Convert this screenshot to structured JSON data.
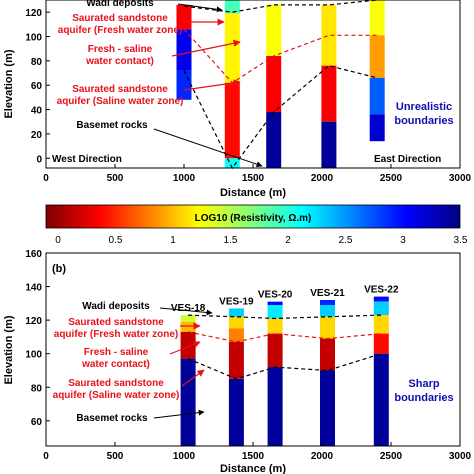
{
  "colorbar": {
    "label": "LOG10 (Resistivity, Ω.m)",
    "ticks": [
      "0",
      "0.5",
      "1",
      "1.5",
      "2",
      "2.5",
      "3",
      "3.5"
    ],
    "range": [
      0,
      3.6
    ]
  },
  "chart_data": [
    {
      "type": "bar",
      "panel_label": "",
      "xlabel": "Distance (m)",
      "ylabel": "Elevation (m)",
      "xlim": [
        0,
        3000
      ],
      "ylim": [
        -8,
        130
      ],
      "xticks": [
        "0",
        "500",
        "1000",
        "1500",
        "2000",
        "2500",
        "3000"
      ],
      "yticks": [
        "0",
        "20",
        "40",
        "60",
        "80",
        "100",
        "120"
      ],
      "columns": [
        {
          "x": 1000,
          "layers": [
            {
              "top": 126,
              "bottom": 106,
              "log_res": 0.45
            },
            {
              "top": 106,
              "bottom": 72,
              "log_res": 3.2
            },
            {
              "top": 72,
              "bottom": 48,
              "log_res": 3.0
            }
          ]
        },
        {
          "x": 1350,
          "layers": [
            {
              "top": 130,
              "bottom": 119,
              "log_res": 2.0
            },
            {
              "top": 119,
              "bottom": 62,
              "log_res": 1.3
            },
            {
              "top": 62,
              "bottom": 0,
              "log_res": 0.5
            },
            {
              "top": 0,
              "bottom": -8,
              "log_res": 2.2
            }
          ]
        },
        {
          "x": 1650,
          "layers": [
            {
              "top": 126,
              "bottom": 84,
              "log_res": 1.35
            },
            {
              "top": 84,
              "bottom": 38,
              "log_res": 0.45
            },
            {
              "top": 38,
              "bottom": -8,
              "log_res": 3.5
            }
          ]
        },
        {
          "x": 2050,
          "layers": [
            {
              "top": 126,
              "bottom": 76,
              "log_res": 1.25
            },
            {
              "top": 76,
              "bottom": 30,
              "log_res": 0.45
            },
            {
              "top": 30,
              "bottom": -8,
              "log_res": 3.5
            }
          ]
        },
        {
          "x": 2400,
          "layers": [
            {
              "top": 130,
              "bottom": 101,
              "log_res": 1.35
            },
            {
              "top": 101,
              "bottom": 66,
              "log_res": 1.0
            },
            {
              "top": 66,
              "bottom": 36,
              "log_res": 2.8
            },
            {
              "top": 36,
              "bottom": 14,
              "log_res": 3.3
            }
          ]
        }
      ],
      "boundaries": [
        {
          "color": "black",
          "points": [
            [
              1000,
              125
            ],
            [
              1350,
              120
            ],
            [
              1650,
              126
            ],
            [
              2050,
              126
            ],
            [
              2400,
              130
            ]
          ]
        },
        {
          "color": "red",
          "points": [
            [
              1000,
              106
            ],
            [
              1350,
              62
            ],
            [
              1650,
              84
            ],
            [
              2050,
              101
            ],
            [
              2400,
              101
            ]
          ]
        },
        {
          "color": "black",
          "points": [
            [
              1000,
              72
            ],
            [
              1350,
              -8
            ],
            [
              1650,
              38
            ],
            [
              2050,
              76
            ],
            [
              2400,
              66
            ]
          ]
        }
      ],
      "annotations": [
        "Wadi deposits",
        "Saurated sandstone aquifer (Fresh water zone)",
        "Fresh - saline water contact)",
        "Saurated sandstone aquifer (Saline water zone)",
        "Basemet rocks"
      ],
      "west_label": "West Direction",
      "east_label": "East Direction",
      "note": "Unrealistic boundaries"
    },
    {
      "type": "bar",
      "panel_label": "(b)",
      "xlabel": "Distance (m)",
      "ylabel": "Elevation (m)",
      "xlim": [
        0,
        3000
      ],
      "ylim": [
        45,
        160
      ],
      "xticks": [
        "0",
        "500",
        "1000",
        "1500",
        "2000",
        "2500",
        "3000"
      ],
      "yticks": [
        "60",
        "80",
        "100",
        "120",
        "140",
        "160"
      ],
      "columns": [
        {
          "x": 1030,
          "name": "VES-18",
          "layers": [
            {
              "top": 123,
              "bottom": 119,
              "log_res": 1.5
            },
            {
              "top": 119,
              "bottom": 113,
              "log_res": 1.1
            },
            {
              "top": 113,
              "bottom": 97,
              "log_res": 0.25
            },
            {
              "top": 97,
              "bottom": 45,
              "log_res": 3.5
            }
          ]
        },
        {
          "x": 1380,
          "name": "VES-19",
          "layers": [
            {
              "top": 127,
              "bottom": 122,
              "log_res": 2.4
            },
            {
              "top": 122,
              "bottom": 115,
              "log_res": 1.2
            },
            {
              "top": 115,
              "bottom": 107,
              "log_res": 0.9
            },
            {
              "top": 107,
              "bottom": 85,
              "log_res": 0.25
            },
            {
              "top": 85,
              "bottom": 45,
              "log_res": 3.5
            }
          ]
        },
        {
          "x": 1660,
          "name": "VES-20",
          "layers": [
            {
              "top": 131,
              "bottom": 129,
              "log_res": 3.1
            },
            {
              "top": 129,
              "bottom": 121,
              "log_res": 2.3
            },
            {
              "top": 121,
              "bottom": 112,
              "log_res": 1.2
            },
            {
              "top": 112,
              "bottom": 92,
              "log_res": 0.25
            },
            {
              "top": 92,
              "bottom": 45,
              "log_res": 3.5
            }
          ]
        },
        {
          "x": 2040,
          "name": "VES-21",
          "layers": [
            {
              "top": 132,
              "bottom": 129,
              "log_res": 3.0
            },
            {
              "top": 129,
              "bottom": 122,
              "log_res": 2.4
            },
            {
              "top": 122,
              "bottom": 109,
              "log_res": 1.2
            },
            {
              "top": 109,
              "bottom": 90,
              "log_res": 0.25
            },
            {
              "top": 90,
              "bottom": 45,
              "log_res": 3.5
            }
          ]
        },
        {
          "x": 2430,
          "name": "VES-22",
          "layers": [
            {
              "top": 134,
              "bottom": 131,
              "log_res": 3.1
            },
            {
              "top": 131,
              "bottom": 123,
              "log_res": 2.4
            },
            {
              "top": 123,
              "bottom": 112,
              "log_res": 1.2
            },
            {
              "top": 112,
              "bottom": 100,
              "log_res": 0.5
            },
            {
              "top": 100,
              "bottom": 45,
              "log_res": 3.5
            }
          ]
        }
      ],
      "boundaries": [
        {
          "color": "black",
          "points": [
            [
              1030,
              123
            ],
            [
              1380,
              122
            ],
            [
              1660,
              121
            ],
            [
              2040,
              122
            ],
            [
              2430,
              123
            ]
          ]
        },
        {
          "color": "red",
          "points": [
            [
              1030,
              113
            ],
            [
              1380,
              107
            ],
            [
              1660,
              112
            ],
            [
              2040,
              109
            ],
            [
              2430,
              112
            ]
          ]
        },
        {
          "color": "black",
          "points": [
            [
              1030,
              97
            ],
            [
              1380,
              85
            ],
            [
              1660,
              92
            ],
            [
              2040,
              90
            ],
            [
              2430,
              100
            ]
          ]
        }
      ],
      "annotations": [
        "Wadi deposits",
        "Saurated sandstone aquifer (Fresh water zone)",
        "Fresh - saline water contact)",
        "Saurated sandstone aquifer (Saline water zone)",
        "Basemet rocks"
      ],
      "note": "Sharp boundaries"
    }
  ]
}
